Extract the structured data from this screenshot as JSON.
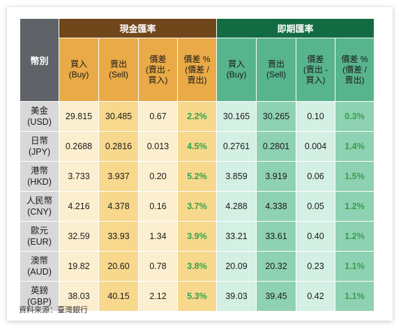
{
  "header": {
    "currency_label": "幣別",
    "cash_title": "現金匯率",
    "spot_title": "即期匯率"
  },
  "columns": {
    "buy": [
      "買入",
      "(Buy)"
    ],
    "sell": [
      "賣出",
      "(Sell)"
    ],
    "spread": [
      "價差",
      "(賣出 -",
      "買入)"
    ],
    "spread_pct": [
      "價差 %",
      "(價差 /",
      "賣出)"
    ]
  },
  "rows": [
    {
      "name": "美金",
      "code": "(USD)",
      "cash": [
        "29.815",
        "30.485",
        "0.67",
        "2.2%"
      ],
      "spot": [
        "30.165",
        "30.265",
        "0.10",
        "0.3%"
      ]
    },
    {
      "name": "日幣",
      "code": "(JPY)",
      "cash": [
        "0.2688",
        "0.2816",
        "0.013",
        "4.5%"
      ],
      "spot": [
        "0.2761",
        "0.2801",
        "0.004",
        "1.4%"
      ]
    },
    {
      "name": "港幣",
      "code": "(HKD)",
      "cash": [
        "3.733",
        "3.937",
        "0.20",
        "5.2%"
      ],
      "spot": [
        "3.859",
        "3.919",
        "0.06",
        "1.5%"
      ]
    },
    {
      "name": "人民幣",
      "code": "(CNY)",
      "cash": [
        "4.216",
        "4.378",
        "0.16",
        "3.7%"
      ],
      "spot": [
        "4.288",
        "4.338",
        "0.05",
        "1.2%"
      ]
    },
    {
      "name": "歐元",
      "code": "(EUR)",
      "cash": [
        "32.59",
        "33.93",
        "1.34",
        "3.9%"
      ],
      "spot": [
        "33.21",
        "33.61",
        "0.40",
        "1.2%"
      ]
    },
    {
      "name": "澳幣",
      "code": "(AUD)",
      "cash": [
        "19.82",
        "20.60",
        "0.78",
        "3.8%"
      ],
      "spot": [
        "20.09",
        "20.32",
        "0.23",
        "1.1%"
      ]
    },
    {
      "name": "英鎊",
      "code": "(GBP)",
      "cash": [
        "38.03",
        "40.15",
        "2.12",
        "5.3%"
      ],
      "spot": [
        "39.03",
        "39.45",
        "0.42",
        "1.1%"
      ]
    }
  ],
  "source": "資料來源：臺灣銀行",
  "colors": {
    "currency_header": "#5f6367",
    "cash_header": "#70471b",
    "spot_header": "#136b44",
    "cash_sub": "#e9aa47",
    "spot_sub": "#57b48d",
    "cash_light": "#fcefcf",
    "cash_dark": "#f7d88c",
    "spot_light": "#d4efe3",
    "spot_dark": "#8fd1b3",
    "percent_text": "#35a24a"
  }
}
